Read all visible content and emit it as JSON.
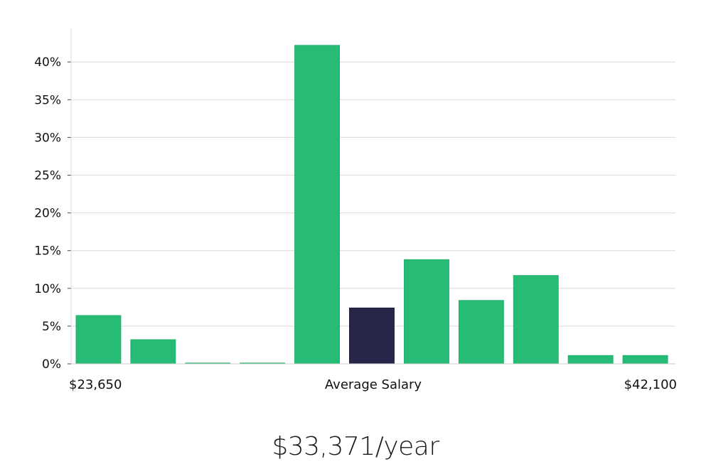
{
  "chart_data": {
    "type": "bar",
    "title": "",
    "xlabel": "",
    "ylabel": "",
    "ylim": [
      0,
      44
    ],
    "ytick_values": [
      0,
      5,
      10,
      15,
      20,
      25,
      30,
      35,
      40
    ],
    "ytick_labels": [
      "0%",
      "5%",
      "10%",
      "15%",
      "20%",
      "25%",
      "30%",
      "35%",
      "40%"
    ],
    "x_labels": {
      "min": "$23,650",
      "center": "Average Salary",
      "max": "$42,100"
    },
    "bins": 11,
    "values": [
      6.4,
      3.2,
      0.1,
      0.1,
      42.2,
      7.4,
      13.8,
      8.4,
      11.7,
      1.1,
      1.1
    ],
    "highlight_index": 5,
    "colors": {
      "bar": "#27bc75",
      "highlight": "#27254a",
      "grid": "#dcdcdc"
    }
  },
  "summary": {
    "salary_text": "$33,371/year"
  }
}
